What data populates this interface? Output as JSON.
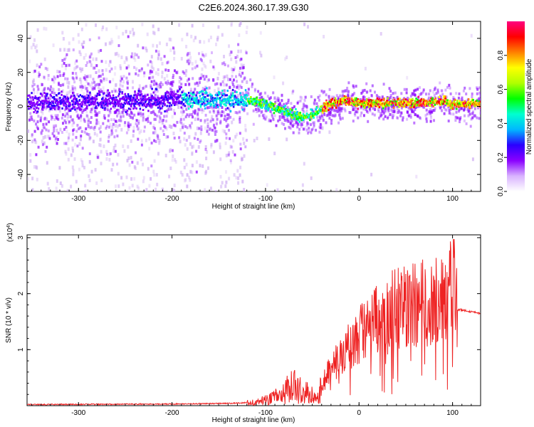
{
  "title": "C2E6.2024.360.17.39.G30",
  "chart_data": [
    {
      "type": "heatmap",
      "xlabel": "Height of straight line (km)",
      "ylabel": "Frequency (Hz)",
      "xlim": [
        -355,
        130
      ],
      "ylim": [
        -50,
        50
      ],
      "x_ticks": [
        -300,
        -200,
        -100,
        0,
        100
      ],
      "y_ticks": [
        -40,
        -20,
        0,
        20,
        40
      ],
      "colorbar": {
        "label": "Normalized spectral amplitude",
        "range": [
          0,
          1
        ],
        "ticks": [
          0.0,
          0.2,
          0.4,
          0.6,
          0.8
        ],
        "tick_labels": [
          "0.0",
          "0.2",
          "0.4",
          "0.6",
          "0.8"
        ],
        "colors": [
          "#ffffff",
          "#d9b3ff",
          "#8a00ff",
          "#2a00ff",
          "#00b8ff",
          "#00ffd0",
          "#00ff00",
          "#b0ff00",
          "#ffff00",
          "#ff8000",
          "#ff0000",
          "#ff0080"
        ]
      },
      "ridge": {
        "x": [
          -355,
          -300,
          -250,
          -200,
          -150,
          -120,
          -100,
          -80,
          -65,
          -55,
          -45,
          -30,
          -15,
          0,
          30,
          60,
          90,
          100,
          130
        ],
        "y": [
          2,
          3,
          3,
          4,
          4,
          4,
          1,
          -3,
          -6,
          -6,
          -3,
          2,
          3,
          2,
          2,
          2,
          3,
          1,
          2
        ]
      }
    },
    {
      "type": "line",
      "xlabel": "Height of straight line (km)",
      "ylabel": "SNR (10 * v/v)",
      "multiplier": "(x10",
      "multiplier_exp": "4",
      "xlim": [
        -355,
        130
      ],
      "ylim": [
        0,
        3.05
      ],
      "x_ticks": [
        -300,
        -200,
        -100,
        0,
        100
      ],
      "y_ticks": [
        1,
        2,
        3
      ],
      "color": "#ee2222",
      "envelope": {
        "x": [
          -355,
          -200,
          -140,
          -110,
          -90,
          -70,
          -55,
          -45,
          -35,
          -20,
          0,
          20,
          40,
          60,
          80,
          95,
          100,
          105,
          130
        ],
        "y": [
          0.02,
          0.03,
          0.04,
          0.06,
          0.15,
          0.35,
          0.25,
          0.1,
          0.55,
          0.9,
          1.25,
          1.5,
          1.75,
          1.8,
          1.85,
          1.8,
          1.9,
          1.72,
          1.65
        ]
      }
    }
  ]
}
